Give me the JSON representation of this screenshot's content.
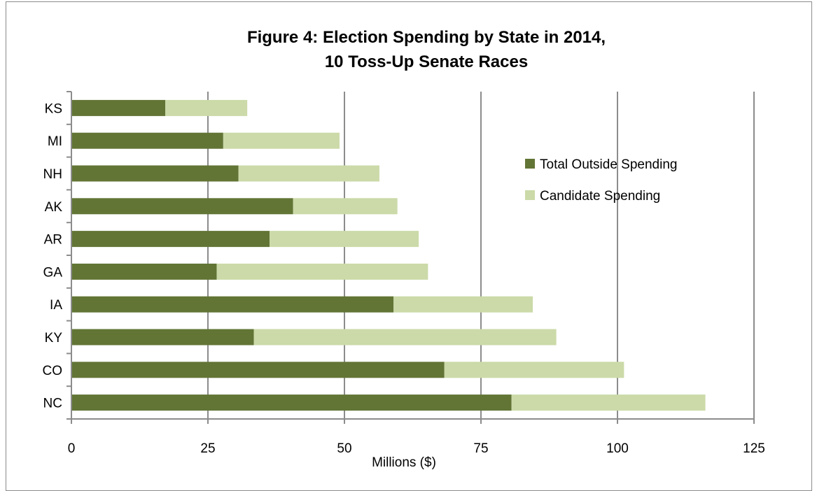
{
  "chart_data": {
    "type": "bar",
    "orientation": "horizontal",
    "stacked": true,
    "title_lines": [
      "Figure 4: Election Spending by State in 2014,",
      "10 Toss-Up Senate Races"
    ],
    "xlabel": "Millions ($)",
    "ylabel": "",
    "xlim": [
      0,
      125
    ],
    "xticks": [
      "0",
      "25",
      "50",
      "75",
      "100",
      "125"
    ],
    "categories": [
      "KS",
      "MI",
      "NH",
      "AK",
      "AR",
      "GA",
      "IA",
      "KY",
      "CO",
      "NC"
    ],
    "series": [
      {
        "name": "Total Outside Spending",
        "color": "#627535",
        "values": [
          17.2,
          27.8,
          30.6,
          40.6,
          36.3,
          26.6,
          59.0,
          33.4,
          68.3,
          80.6
        ]
      },
      {
        "name": "Candidate Spending",
        "color": "#cbdaa8",
        "values": [
          15.0,
          21.3,
          25.8,
          19.1,
          27.3,
          38.7,
          25.5,
          55.4,
          32.9,
          35.5
        ]
      }
    ],
    "grid": "vertical-major",
    "legend_position": "right-top"
  }
}
